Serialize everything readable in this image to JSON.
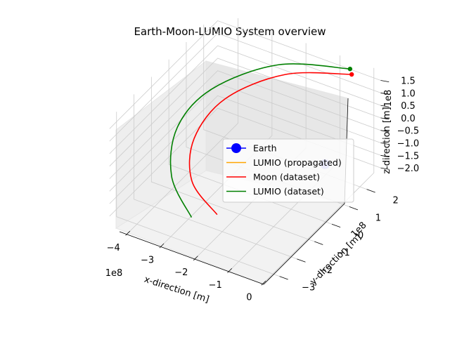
{
  "chart_data": {
    "type": "line",
    "title": "Earth-Moon-LUMIO System overview",
    "projection": "3d",
    "grid": true,
    "legend_placement": "center-right",
    "axes": {
      "x": {
        "label": "x-direction [m]",
        "offset_text": "1e8",
        "ticks": [
          -4,
          -3,
          -2,
          -1,
          0
        ],
        "tick_labels": [
          "−4",
          "−3",
          "−2",
          "−1",
          "0"
        ],
        "range": [
          -4.6,
          0.2
        ]
      },
      "y": {
        "label": "y-direction [m]",
        "offset_text": "1e8",
        "ticks": [
          -3,
          -2,
          -1,
          0,
          1,
          2
        ],
        "tick_labels": [
          "−3",
          "−2",
          "−1",
          "0",
          "1",
          "2"
        ],
        "range": [
          -3.4,
          2.8
        ]
      },
      "z": {
        "label": "z-direction [m]",
        "offset_text": "1e8",
        "ticks": [
          -2.0,
          -1.5,
          -1.0,
          -0.5,
          0.0,
          0.5,
          1.0,
          1.5
        ],
        "tick_labels": [
          "−2.0",
          "−1.5",
          "−1.0",
          "−0.5",
          "0.0",
          "0.5",
          "1.0",
          "1.5"
        ],
        "range": [
          -2.3,
          1.9
        ]
      }
    },
    "series": [
      {
        "name": "Earth",
        "kind": "marker",
        "color": "#0000ff",
        "points": [
          {
            "x": 0,
            "y": 0,
            "z": 0
          }
        ]
      },
      {
        "name": "LUMIO (propagated)",
        "kind": "line",
        "color": "#ffa500",
        "points": []
      },
      {
        "name": "Moon (dataset)",
        "kind": "line",
        "color": "#ff0000",
        "start_marker": true,
        "points": [
          {
            "x": -0.5,
            "y": 2.5,
            "z": 1.6
          },
          {
            "x": -2.2,
            "y": 2.0,
            "z": 1.1
          },
          {
            "x": -3.4,
            "y": 0.9,
            "z": 0.3
          },
          {
            "x": -3.7,
            "y": -0.3,
            "z": -0.6
          },
          {
            "x": -3.2,
            "y": -1.4,
            "z": -1.3
          },
          {
            "x": -2.1,
            "y": -2.1,
            "z": -1.6
          }
        ]
      },
      {
        "name": "LUMIO (dataset)",
        "kind": "line",
        "color": "#008000",
        "start_marker": true,
        "points": [
          {
            "x": -0.6,
            "y": 2.6,
            "z": 1.7
          },
          {
            "x": -2.5,
            "y": 2.2,
            "z": 1.2
          },
          {
            "x": -3.9,
            "y": 1.1,
            "z": 0.3
          },
          {
            "x": -4.3,
            "y": -0.1,
            "z": -0.6
          },
          {
            "x": -3.8,
            "y": -1.4,
            "z": -1.4
          },
          {
            "x": -2.7,
            "y": -2.4,
            "z": -1.8
          }
        ]
      }
    ]
  }
}
